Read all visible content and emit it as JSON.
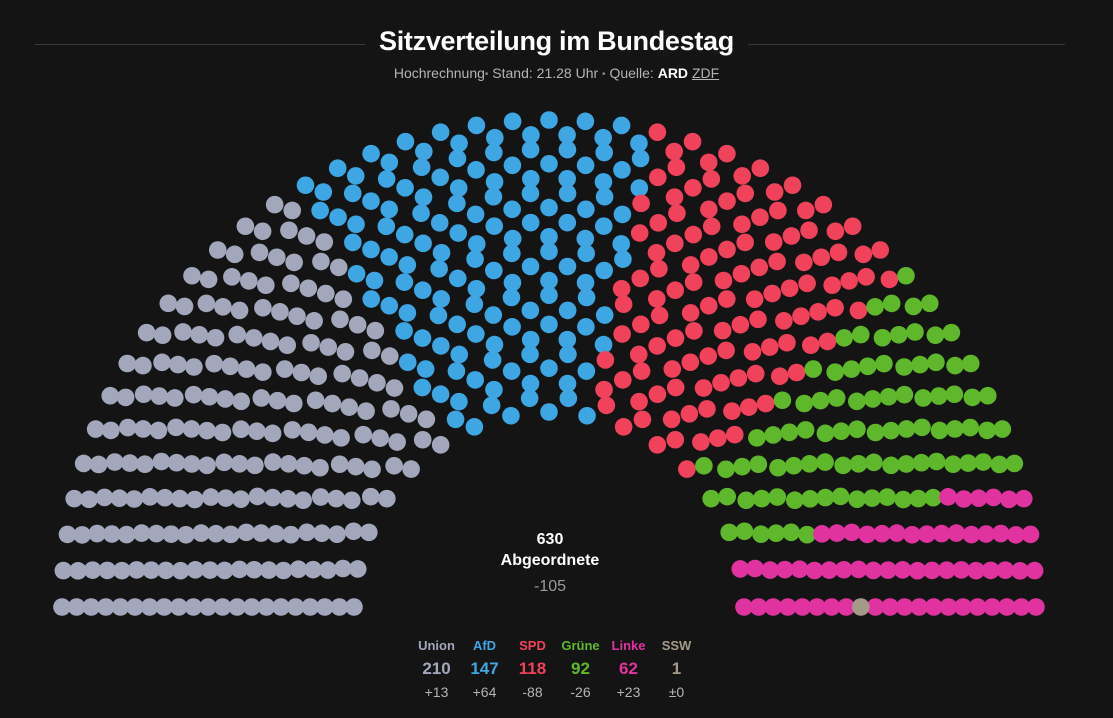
{
  "header": {
    "title": "Sitzverteilung im Bundestag",
    "subtitle_prefix": "Hochrechnung",
    "stand": "Stand: 21.28 Uhr",
    "source_label": "Quelle:",
    "source_active": "ARD",
    "source_other": "ZDF"
  },
  "summary": {
    "total": "630",
    "total_label": "Abgeordnete",
    "total_change": "-105"
  },
  "chart_data": {
    "type": "parliament",
    "title": "Sitzverteilung im Bundestag",
    "total_seats": 630,
    "series": [
      {
        "name": "Union",
        "seats": 210,
        "change": "+13",
        "color": "#a2a7bc"
      },
      {
        "name": "AfD",
        "seats": 147,
        "change": "+64",
        "color": "#3fa6e4"
      },
      {
        "name": "SPD",
        "seats": 118,
        "change": "-88",
        "color": "#f0425b"
      },
      {
        "name": "Grüne",
        "seats": 92,
        "change": "-26",
        "color": "#5fb82c"
      },
      {
        "name": "Linke",
        "seats": 62,
        "change": "+23",
        "color": "#e0339f"
      },
      {
        "name": "SSW",
        "seats": 1,
        "change": "±0",
        "color": "#a39a8a"
      }
    ]
  }
}
